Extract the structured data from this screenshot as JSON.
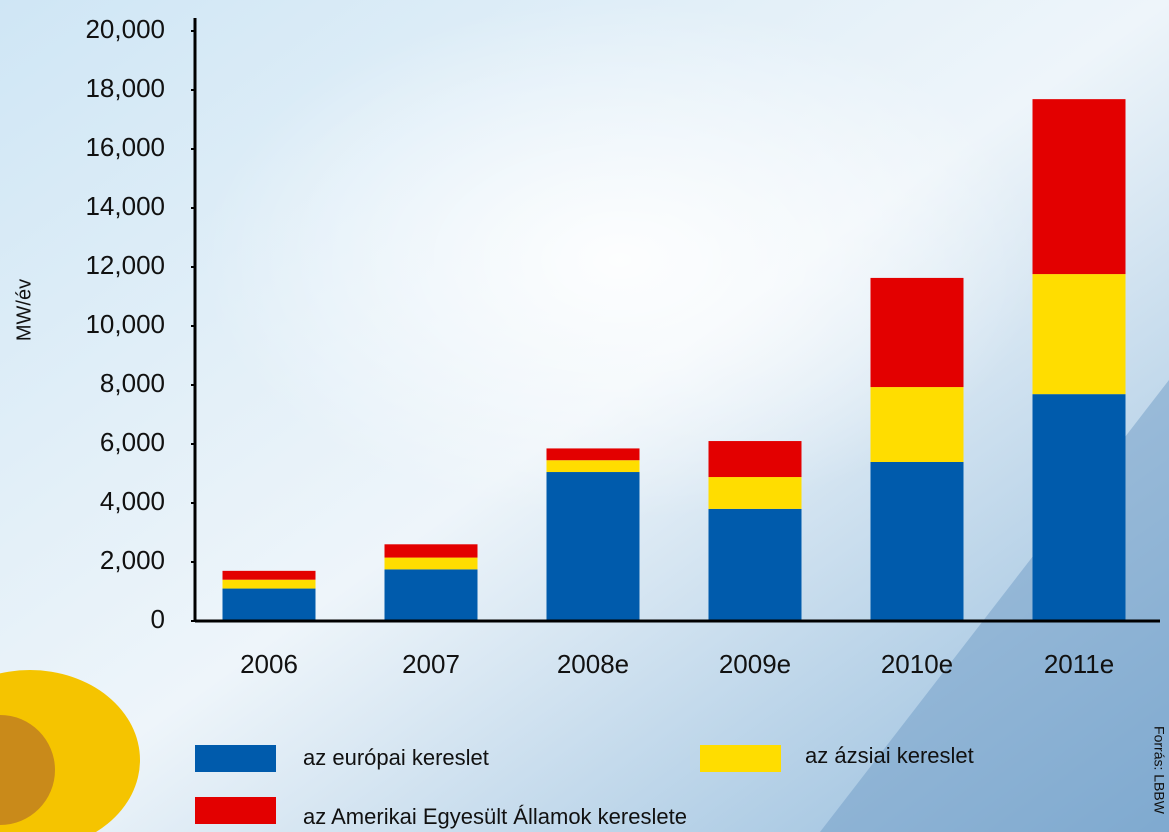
{
  "chart_data": {
    "type": "stacked_bar",
    "y_label": "MW/év",
    "source": "Forrás: LBBW",
    "categories": [
      "2006",
      "2007",
      "2008e",
      "2009e",
      "2010e",
      "2011e"
    ],
    "series": [
      {
        "name": "az európai kereslet",
        "color": "#005bac",
        "values": [
          1100,
          1750,
          5050,
          3800,
          5390,
          7690
        ]
      },
      {
        "name": "az ázsiai kereslet",
        "color": "#ffdd00",
        "values": [
          300,
          400,
          400,
          1080,
          2540,
          4070
        ]
      },
      {
        "name": "az Amerikai Egyesült Államok kereslete",
        "color": "#e30000",
        "values": [
          300,
          450,
          400,
          1220,
          3700,
          5930
        ]
      }
    ],
    "ylim": [
      0,
      20000
    ],
    "yticks": [
      0,
      {
        "value": 2000,
        "label": "2,000"
      },
      {
        "value": 4000,
        "label": "4,000"
      },
      {
        "value": 6000,
        "label": "6,000"
      },
      {
        "value": 8000,
        "label": "8,000"
      },
      {
        "value": 10000,
        "label": "10,000"
      },
      {
        "value": 12000,
        "label": "12,000"
      },
      {
        "value": 14000,
        "label": "14,000"
      },
      {
        "value": 16000,
        "label": "16,000"
      },
      {
        "value": 18000,
        "label": "18,000"
      },
      {
        "value": 20000,
        "label": "20,000"
      }
    ]
  }
}
